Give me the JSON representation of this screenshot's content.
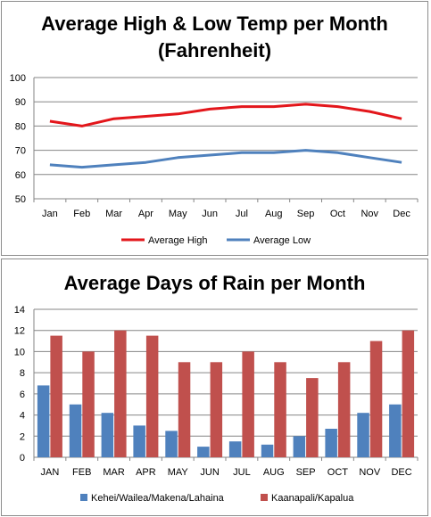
{
  "chart_data": [
    {
      "type": "line",
      "title_lines": [
        "Average High & Low Temp per Month",
        "(Fahrenheit)"
      ],
      "categories": [
        "Jan",
        "Feb",
        "Mar",
        "Apr",
        "May",
        "Jun",
        "Jul",
        "Aug",
        "Sep",
        "Oct",
        "Nov",
        "Dec"
      ],
      "series": [
        {
          "name": "Average High",
          "color": "#e3161b",
          "values": [
            82,
            80,
            83,
            84,
            85,
            87,
            88,
            88,
            89,
            88,
            86,
            83
          ]
        },
        {
          "name": "Average Low",
          "color": "#4f81bd",
          "values": [
            64,
            63,
            64,
            65,
            67,
            68,
            69,
            69,
            70,
            69,
            67,
            65
          ]
        }
      ],
      "ylim": [
        50,
        100
      ],
      "yticks": [
        50,
        60,
        70,
        80,
        90,
        100
      ],
      "grid": true,
      "legend": "bottom"
    },
    {
      "type": "bar",
      "title": "Average Days of Rain per Month",
      "categories": [
        "JAN",
        "FEB",
        "MAR",
        "APR",
        "MAY",
        "JUN",
        "JUL",
        "AUG",
        "SEP",
        "OCT",
        "NOV",
        "DEC"
      ],
      "series": [
        {
          "name": "Kehei/Wailea/Makena/Lahaina",
          "color": "#4f81bd",
          "values": [
            6.8,
            5,
            4.2,
            3,
            2.5,
            1,
            1.5,
            1.2,
            2,
            2.7,
            4.2,
            5
          ]
        },
        {
          "name": "Kaanapali/Kapalua",
          "color": "#c0504d",
          "values": [
            11.5,
            10,
            12,
            11.5,
            9,
            9,
            10,
            9,
            7.5,
            9,
            11,
            12
          ]
        }
      ],
      "ylim": [
        0,
        14
      ],
      "yticks": [
        0,
        2,
        4,
        6,
        8,
        10,
        12,
        14
      ],
      "grid": true,
      "legend": "bottom"
    }
  ]
}
